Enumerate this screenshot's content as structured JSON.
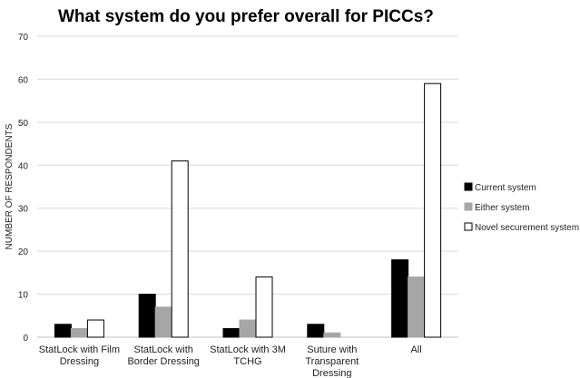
{
  "chart_data": {
    "type": "bar",
    "title": "What system do you prefer overall for PICCs?",
    "ylabel": "NUMBER OF RESPONDENTS",
    "xlabel": "",
    "ylim": [
      0,
      70
    ],
    "yticks": [
      0,
      10,
      20,
      30,
      40,
      50,
      60,
      70
    ],
    "grid": true,
    "legend_position": "right",
    "categories": [
      [
        "StatLock with Film",
        "Dressing"
      ],
      [
        "StatLock with",
        "Border Dressing"
      ],
      [
        "StatLock with 3M",
        "TCHG"
      ],
      [
        "Suture with",
        "Transparent",
        "Dressing"
      ],
      [
        "All"
      ]
    ],
    "series": [
      {
        "name": "Current system",
        "values": [
          3,
          10,
          2,
          3,
          18
        ],
        "fill": "#000000",
        "stroke": "#000000"
      },
      {
        "name": "Either system",
        "values": [
          2,
          7,
          4,
          1,
          14
        ],
        "fill": "#a6a6a6",
        "stroke": "#a6a6a6"
      },
      {
        "name": "Novel securement system",
        "values": [
          4,
          41,
          14,
          0,
          59
        ],
        "fill": "#ffffff",
        "stroke": "#000000"
      }
    ]
  }
}
